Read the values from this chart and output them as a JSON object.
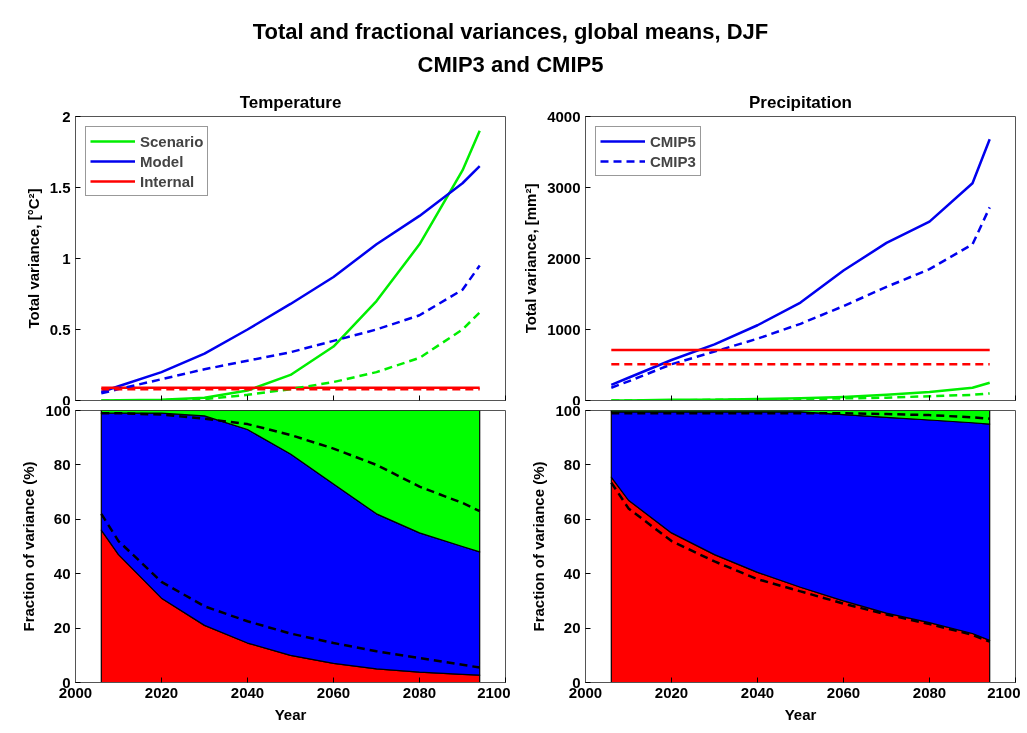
{
  "chart_data": [
    {
      "type": "other",
      "title": "Total and fractional variances, global means, DJF",
      "subtitle": "CMIP3 and CMIP5"
    },
    {
      "type": "line",
      "title": "Temperature",
      "ylabel": "Total variance, [°C²]",
      "x": [
        2006,
        2010,
        2020,
        2030,
        2040,
        2050,
        2060,
        2070,
        2080,
        2090,
        2094
      ],
      "xlim": [
        2000,
        2100
      ],
      "xticks": [
        2000,
        2020,
        2040,
        2060,
        2080,
        2100
      ],
      "ylim": [
        0,
        2
      ],
      "yticks": [
        0,
        0.5,
        1,
        1.5,
        2
      ],
      "tick_labels": "y",
      "grid": false,
      "legend": "top left",
      "series": [
        {
          "name": "Scenario",
          "color": "#00ee00",
          "line_style": "solid",
          "values": [
            0,
            0.001,
            0.005,
            0.02,
            0.07,
            0.18,
            0.38,
            0.7,
            1.1,
            1.62,
            1.9
          ]
        },
        {
          "name": "Model",
          "color": "#0000ee",
          "line_style": "solid",
          "values": [
            0.06,
            0.1,
            0.2,
            0.33,
            0.5,
            0.68,
            0.87,
            1.1,
            1.3,
            1.53,
            1.65
          ]
        },
        {
          "name": "Internal",
          "color": "#ff0000",
          "line_style": "solid",
          "values": [
            0.09,
            0.09,
            0.09,
            0.09,
            0.09,
            0.09,
            0.09,
            0.09,
            0.09,
            0.09,
            0.09
          ]
        },
        {
          "color": "#00ee00",
          "line_style": "dashed",
          "values": [
            0,
            0,
            0.002,
            0.01,
            0.04,
            0.08,
            0.13,
            0.2,
            0.3,
            0.5,
            0.62
          ]
        },
        {
          "color": "#0000ee",
          "line_style": "dashed",
          "values": [
            0.05,
            0.08,
            0.15,
            0.22,
            0.28,
            0.34,
            0.42,
            0.5,
            0.6,
            0.78,
            0.95
          ]
        },
        {
          "color": "#ff0000",
          "line_style": "dashed",
          "values": [
            0.08,
            0.08,
            0.08,
            0.08,
            0.08,
            0.08,
            0.08,
            0.08,
            0.08,
            0.08,
            0.08
          ]
        }
      ]
    },
    {
      "type": "line",
      "title": "Precipitation",
      "ylabel": "Total variance, [mm²]",
      "x": [
        2006,
        2010,
        2020,
        2030,
        2040,
        2050,
        2060,
        2070,
        2080,
        2090,
        2094
      ],
      "xlim": [
        2000,
        2100
      ],
      "xticks": [
        2000,
        2020,
        2040,
        2060,
        2080,
        2100
      ],
      "ylim": [
        0,
        4000
      ],
      "yticks": [
        0,
        1000,
        2000,
        3000,
        4000
      ],
      "tick_labels": "y",
      "grid": false,
      "legend": "top left",
      "series": [
        {
          "name": "CMIP5",
          "color": "#0000ee",
          "line_style": "solid",
          "values": [
            220,
            320,
            570,
            790,
            1060,
            1380,
            1830,
            2220,
            2520,
            3060,
            3680
          ]
        },
        {
          "name": "CMIP3",
          "color": "#0000ee",
          "line_style": "dashed",
          "values": [
            180,
            270,
            510,
            690,
            870,
            1080,
            1330,
            1600,
            1850,
            2200,
            2720
          ]
        },
        {
          "color": "#ff0000",
          "line_style": "solid",
          "values": [
            710,
            710,
            710,
            710,
            710,
            710,
            710,
            710,
            710,
            710,
            710
          ]
        },
        {
          "color": "#ff0000",
          "line_style": "dashed",
          "values": [
            510,
            510,
            510,
            510,
            510,
            510,
            510,
            510,
            510,
            510,
            510
          ]
        },
        {
          "color": "#00ee00",
          "line_style": "solid",
          "values": [
            0,
            0,
            10,
            10,
            20,
            30,
            50,
            80,
            120,
            180,
            250
          ]
        },
        {
          "color": "#00ee00",
          "line_style": "dashed",
          "values": [
            0,
            0,
            0,
            10,
            10,
            20,
            30,
            40,
            60,
            80,
            100
          ]
        }
      ]
    },
    {
      "type": "area",
      "stacked": true,
      "xlabel": "Year",
      "ylabel": "Fraction of variance (%)",
      "x": [
        2006,
        2010,
        2020,
        2030,
        2040,
        2050,
        2060,
        2070,
        2080,
        2090,
        2094
      ],
      "xlim": [
        2000,
        2100
      ],
      "xticks": [
        2000,
        2020,
        2040,
        2060,
        2080,
        2100
      ],
      "ylim": [
        0,
        100
      ],
      "yticks": [
        0,
        20,
        40,
        60,
        80,
        100
      ],
      "grid": false,
      "series": [
        {
          "color": "#ff0000",
          "values": [
            56,
            47,
            31,
            21,
            14.5,
            10,
            7,
            5,
            3.8,
            3,
            2.7
          ]
        },
        {
          "color": "#0000ff",
          "values": [
            43,
            52,
            68,
            77,
            78.5,
            74,
            66,
            57,
            51.2,
            47,
            45.3
          ]
        },
        {
          "color": "#00ff00",
          "values": [
            1,
            1,
            1,
            2,
            7,
            16,
            27,
            38,
            45,
            50,
            52
          ]
        },
        {
          "type": "line",
          "color": "#000000",
          "line_style": "dashed",
          "values": [
            62,
            52,
            37,
            28,
            22.5,
            18,
            14.5,
            11.5,
            9,
            6.5,
            5.5
          ]
        },
        {
          "type": "line",
          "color": "#000000",
          "line_style": "dashed",
          "values": [
            99,
            99,
            98.5,
            97,
            95,
            91,
            86,
            80,
            72,
            66,
            63
          ]
        }
      ]
    },
    {
      "type": "area",
      "stacked": true,
      "xlabel": "Year",
      "ylabel": "Fraction of variance (%)",
      "x": [
        2006,
        2010,
        2020,
        2030,
        2040,
        2050,
        2060,
        2070,
        2080,
        2090,
        2094
      ],
      "xlim": [
        2000,
        2100
      ],
      "xticks": [
        2000,
        2020,
        2040,
        2060,
        2080,
        2100
      ],
      "ylim": [
        0,
        100
      ],
      "yticks": [
        0,
        20,
        40,
        60,
        80,
        100
      ],
      "grid": false,
      "series": [
        {
          "color": "#ff0000",
          "values": [
            75.5,
            67,
            55,
            47,
            40.5,
            35,
            30,
            25.5,
            22,
            18,
            15.5
          ]
        },
        {
          "color": "#0000ff",
          "values": [
            24,
            32.5,
            44.5,
            52.5,
            59,
            64.5,
            68.5,
            72,
            74.5,
            77.5,
            79.5
          ]
        },
        {
          "color": "#00ff00",
          "values": [
            0.5,
            0.5,
            0.5,
            0.5,
            0.5,
            0.5,
            1.5,
            2.5,
            3.5,
            4.5,
            5
          ]
        },
        {
          "type": "line",
          "color": "#000000",
          "line_style": "dashed",
          "values": [
            73.5,
            64,
            52,
            44.5,
            38,
            33.5,
            29,
            25,
            21.5,
            17.5,
            15
          ]
        },
        {
          "type": "line",
          "color": "#000000",
          "line_style": "dashed",
          "values": [
            99,
            99,
            99,
            99,
            99,
            99,
            99,
            98.7,
            98.3,
            97.5,
            97
          ]
        }
      ]
    }
  ]
}
